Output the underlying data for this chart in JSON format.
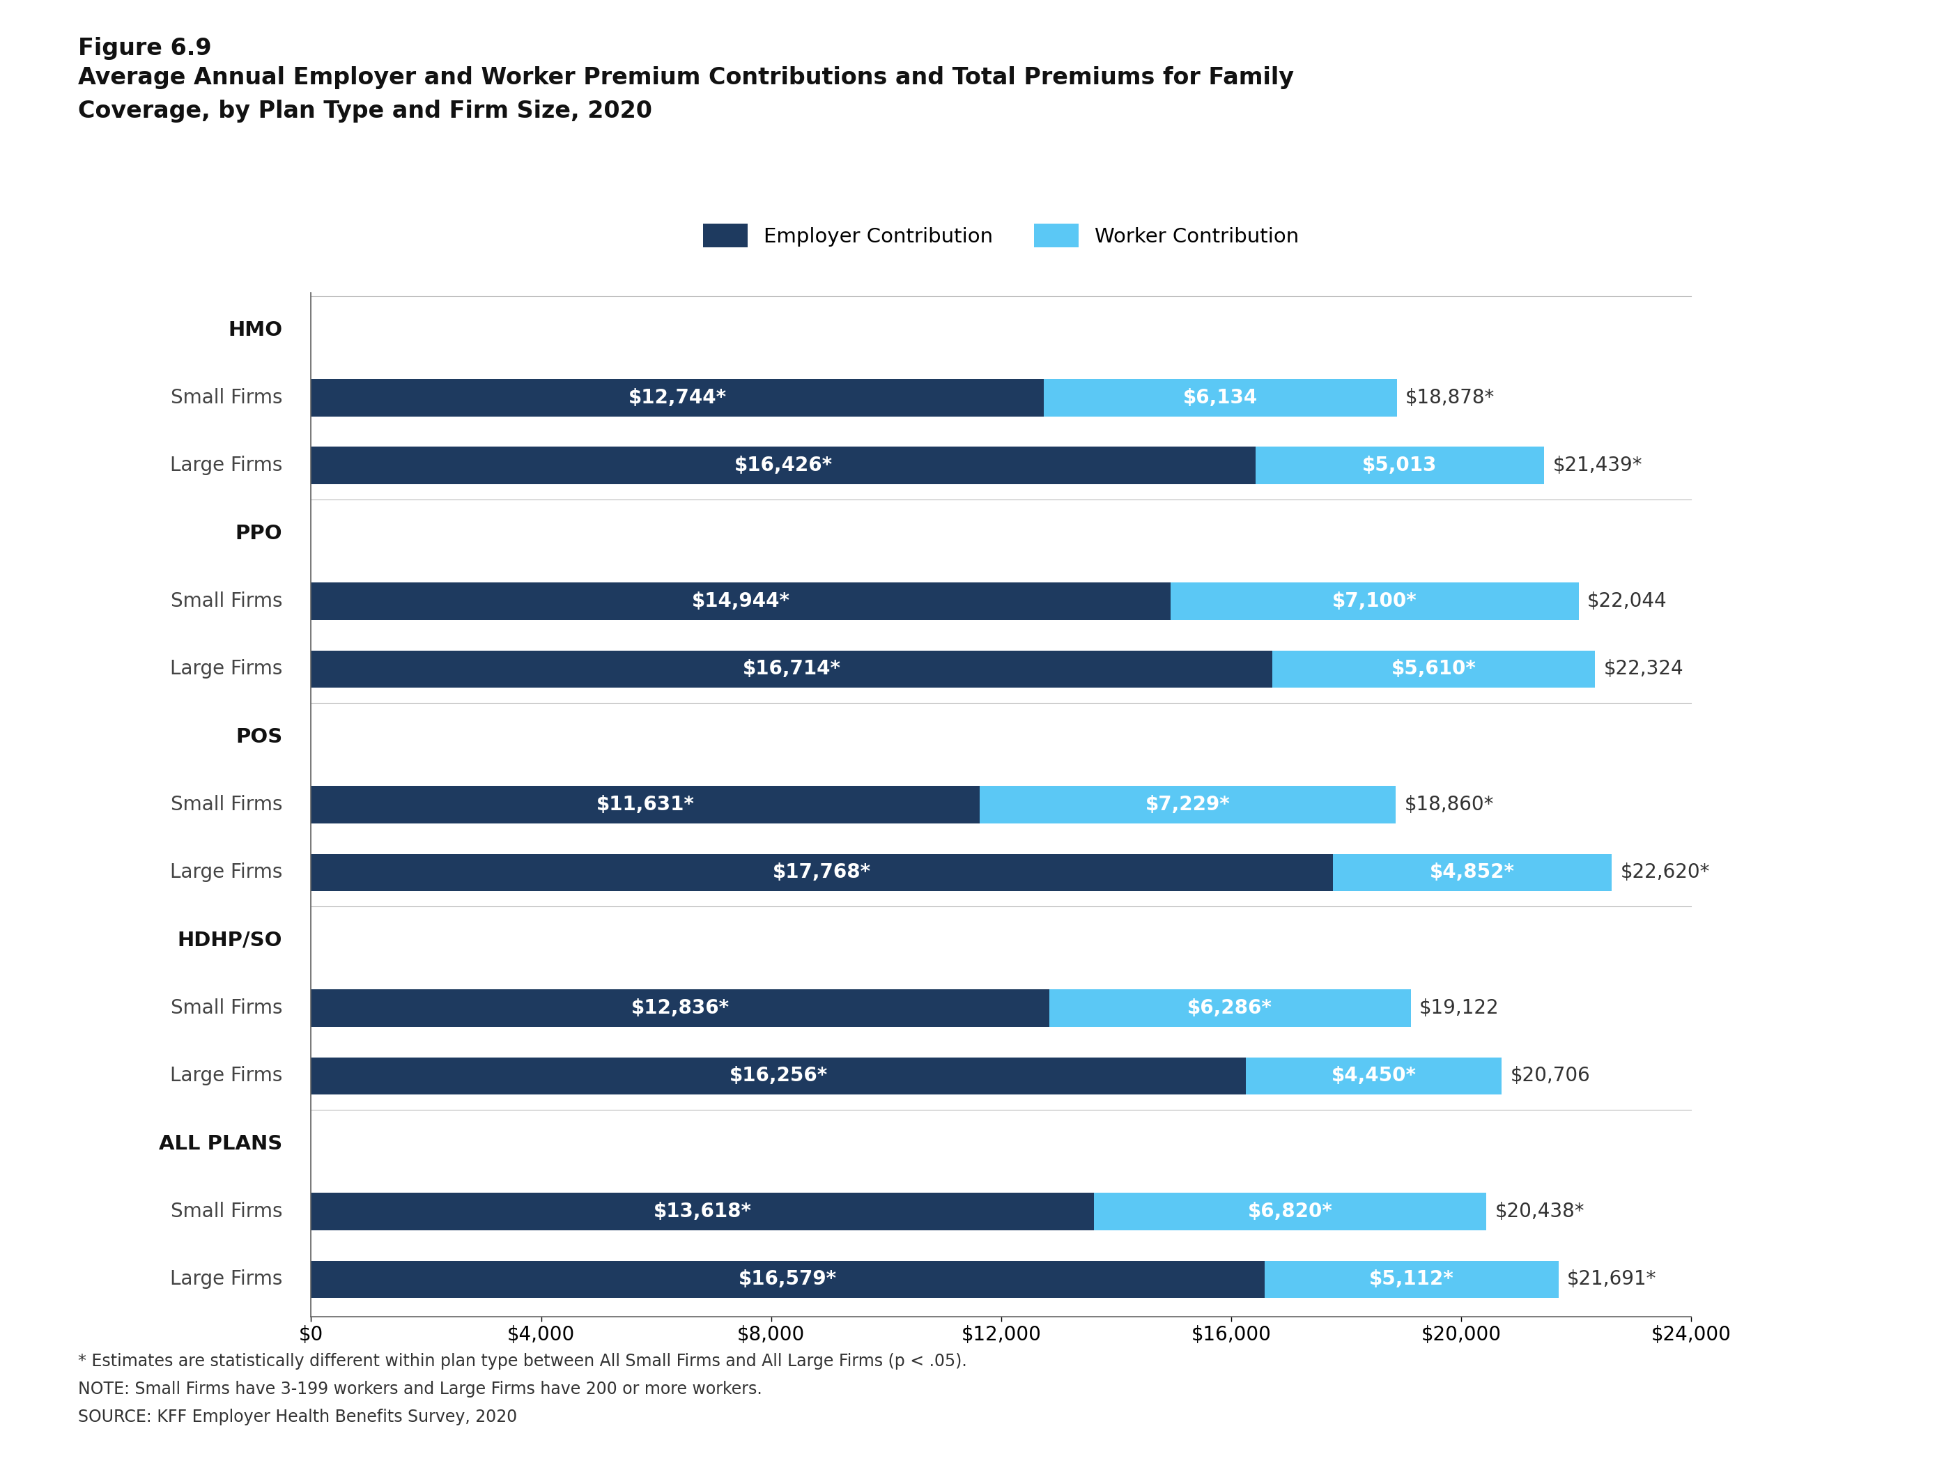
{
  "figure_label": "Figure 6.9",
  "title_line1": "Average Annual Employer and Worker Premium Contributions and Total Premiums for Family",
  "title_line2": "Coverage, by Plan Type and Firm Size, 2020",
  "employer_color": "#1e3a5f",
  "worker_color": "#5bc8f5",
  "background_color": "#ffffff",
  "legend_labels": [
    "Employer Contribution",
    "Worker Contribution"
  ],
  "ytick_labels": [
    "HMO",
    "Small Firms",
    "Large Firms",
    "PPO",
    "Small Firms",
    "Large Firms",
    "POS",
    "Small Firms",
    "Large Firms",
    "HDHP/SO",
    "Small Firms",
    "Large Firms",
    "ALL PLANS",
    "Small Firms",
    "Large Firms"
  ],
  "header_rows": [
    0,
    3,
    6,
    9,
    12
  ],
  "employer_values": [
    0,
    12744,
    16426,
    0,
    14944,
    16714,
    0,
    11631,
    17768,
    0,
    12836,
    16256,
    0,
    13618,
    16579
  ],
  "worker_values": [
    0,
    6134,
    5013,
    0,
    7100,
    5610,
    0,
    7229,
    4852,
    0,
    6286,
    4450,
    0,
    6820,
    5112
  ],
  "employer_labels": [
    "",
    "$12,744*",
    "$16,426*",
    "",
    "$14,944*",
    "$16,714*",
    "",
    "$11,631*",
    "$17,768*",
    "",
    "$12,836*",
    "$16,256*",
    "",
    "$13,618*",
    "$16,579*"
  ],
  "worker_labels": [
    "",
    "$6,134",
    "$5,013",
    "",
    "$7,100*",
    "$5,610*",
    "",
    "$7,229*",
    "$4,852*",
    "",
    "$6,286*",
    "$4,450*",
    "",
    "$6,820*",
    "$5,112*"
  ],
  "total_labels": [
    "",
    "$18,878*",
    "$21,439*",
    "",
    "$22,044",
    "$22,324",
    "",
    "$18,860*",
    "$22,620*",
    "",
    "$19,122",
    "$20,706",
    "",
    "$20,438*",
    "$21,691*"
  ],
  "xlim": [
    0,
    24000
  ],
  "xticks": [
    0,
    4000,
    8000,
    12000,
    16000,
    20000,
    24000
  ],
  "bar_height": 0.55,
  "footnote1": "* Estimates are statistically different within plan type between All Small Firms and All Large Firms (p < .05).",
  "footnote2": "NOTE: Small Firms have 3-199 workers and Large Firms have 200 or more workers.",
  "footnote3": "SOURCE: KFF Employer Health Benefits Survey, 2020"
}
